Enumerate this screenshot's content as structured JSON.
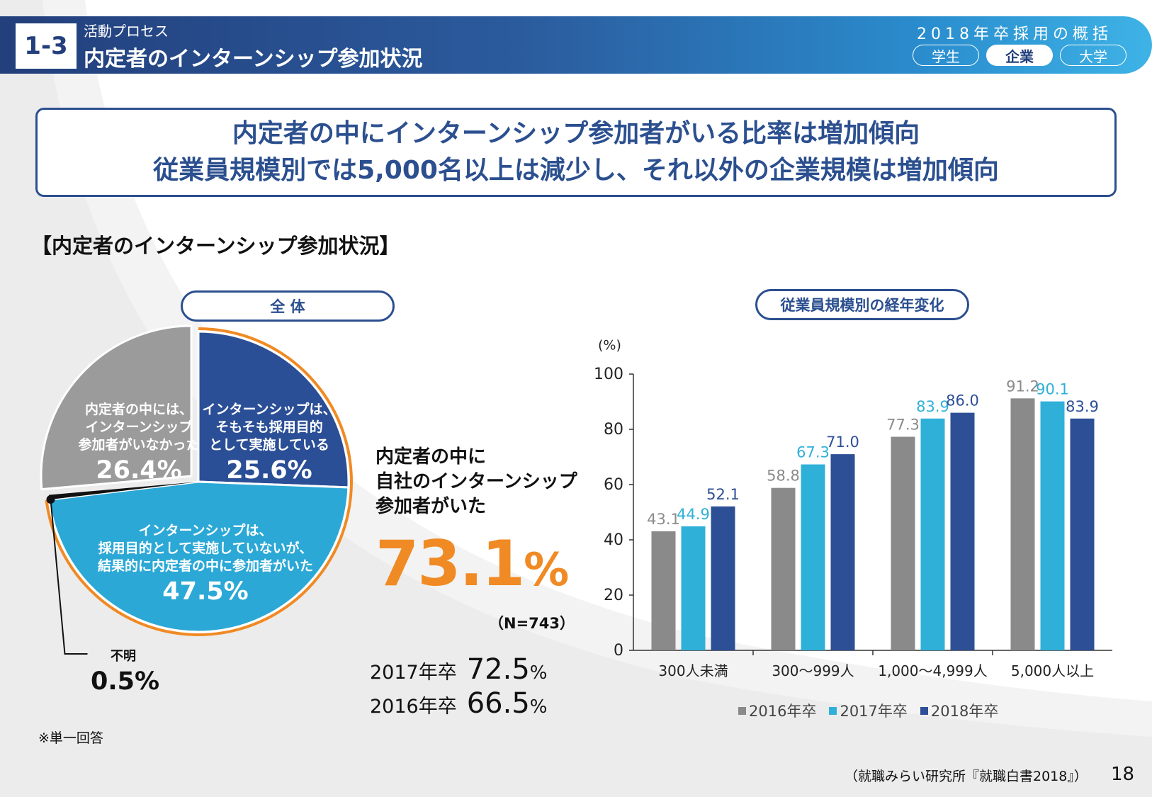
{
  "header": {
    "section_number": "1-3",
    "section_subtitle": "活動プロセス",
    "section_title": "内定者のインターンシップ参加状況",
    "report_title": "2018年卒採用の概括",
    "tabs": [
      {
        "label": "学生",
        "active": false
      },
      {
        "label": "企業",
        "active": true
      },
      {
        "label": "大学",
        "active": false
      }
    ]
  },
  "headline": {
    "line1": "内定者の中にインターンシップ参加者がいる比率は増加傾向",
    "line2": "従業員規模別では5,000名以上は減少し、それ以外の企業規模は増加傾向"
  },
  "subtitle": "【内定者のインターンシップ参加状況】",
  "overall": {
    "pill_label": "全 体",
    "stat_label_lines": [
      "内定者の中に",
      "自社のインターンシップ",
      "参加者がいた"
    ],
    "stat_value": "73.1",
    "stat_unit": "%",
    "n_label": "（N=743）",
    "history": [
      {
        "label": "2017年卒",
        "value": "72.5",
        "unit": "%"
      },
      {
        "label": "2016年卒",
        "value": "66.5",
        "unit": "%"
      }
    ]
  },
  "size_chart": {
    "pill_label": "従業員規模別の経年変化"
  },
  "chart_data": [
    {
      "type": "pie",
      "title": "全 体",
      "slices": [
        {
          "label_lines": [
            "インターンシップは、",
            "そもそも採用目的",
            "として実施している"
          ],
          "value": 25.6,
          "display": "25.6%",
          "color": "#2b4f96",
          "highlight": true
        },
        {
          "label_lines": [
            "インターンシップは、",
            "採用目的として実施していないが、",
            "結果的に内定者の中に参加者がいた"
          ],
          "value": 47.5,
          "display": "47.5%",
          "color": "#2ba8d6",
          "highlight": true
        },
        {
          "label_lines": [
            "不明"
          ],
          "value": 0.5,
          "display": "0.5%",
          "color": "#111111",
          "highlight": false
        },
        {
          "label_lines": [
            "内定者の中には、",
            "インターンシップ",
            "参加者がいなかった"
          ],
          "value": 26.4,
          "display": "26.4%",
          "color": "#9b9b9b",
          "highlight": false
        }
      ]
    },
    {
      "type": "bar",
      "title": "従業員規模別の経年変化",
      "ylabel": "(%)",
      "ylim": [
        0,
        100
      ],
      "yticks": [
        0,
        20,
        40,
        60,
        80,
        100
      ],
      "categories": [
        "300人未満",
        "300～999人",
        "1,000～4,999人",
        "5,000人以上"
      ],
      "series": [
        {
          "name": "2016年卒",
          "color": "#8a8a8a",
          "label_color": "#8a8a8a",
          "values": [
            43.1,
            58.8,
            77.3,
            91.2
          ]
        },
        {
          "name": "2017年卒",
          "color": "#2fb0d9",
          "label_color": "#2fb0d9",
          "values": [
            44.9,
            67.3,
            83.9,
            90.1
          ]
        },
        {
          "name": "2018年卒",
          "color": "#2d4f96",
          "label_color": "#2d4f96",
          "values": [
            52.1,
            71.0,
            86.0,
            83.9
          ]
        }
      ]
    }
  ],
  "footer": {
    "note": "※単一回答",
    "source": "（就職みらい研究所『就職白書2018』）",
    "page_number": "18"
  }
}
